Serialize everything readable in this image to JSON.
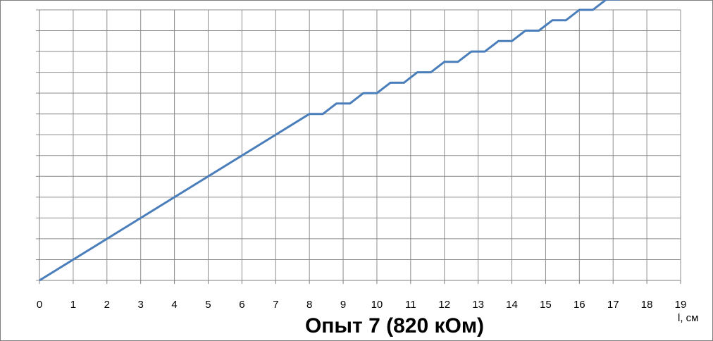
{
  "chart_data": {
    "type": "line",
    "title": "Опыт 7 (820 кОм)",
    "xlabel": "l, см",
    "ylabel": "",
    "xlim": [
      0,
      19
    ],
    "ylim": [
      0,
      13
    ],
    "x_ticks": [
      "0",
      "1",
      "2",
      "3",
      "4",
      "5",
      "6",
      "7",
      "8",
      "9",
      "10",
      "11",
      "12",
      "13",
      "14",
      "15",
      "16",
      "17",
      "18",
      "19"
    ],
    "y_gridlines": 13,
    "y_tick_labels_shown": false,
    "grid": true,
    "legend": "none",
    "series_color": "#4a7ebb",
    "series": [
      {
        "x": [
          0,
          8,
          8.4,
          8.8,
          9.2,
          9.6,
          10.0,
          10.4,
          10.8,
          11.2,
          11.6,
          12.0,
          12.4,
          12.8,
          13.2,
          13.6,
          14.0,
          14.4,
          14.8,
          15.2,
          15.6,
          16.0,
          16.4,
          16.8,
          17.2
        ],
        "y": [
          0,
          8.0,
          8.0,
          8.5,
          8.5,
          9.0,
          9.0,
          9.5,
          9.5,
          10.0,
          10.0,
          10.5,
          10.5,
          11.0,
          11.0,
          11.5,
          11.5,
          12.0,
          12.0,
          12.5,
          12.5,
          13.0,
          13.0,
          13.5,
          13.5
        ]
      }
    ]
  }
}
